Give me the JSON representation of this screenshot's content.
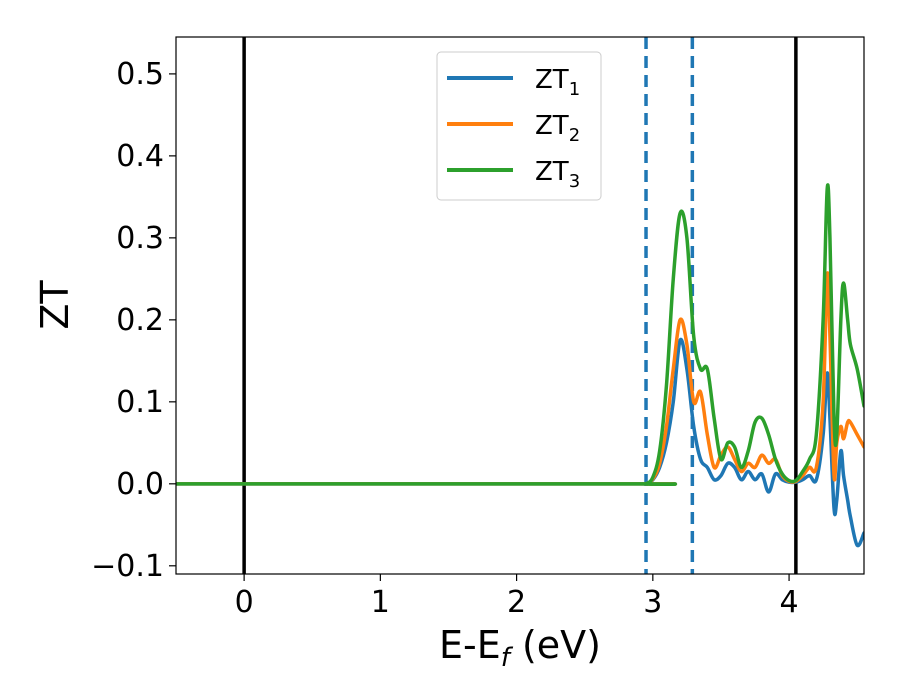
{
  "chart_data": {
    "type": "line",
    "xlabel": "E-E",
    "xlabel_sub": "f",
    "xlabel_unit": " (eV)",
    "ylabel": "ZT",
    "xlim": [
      -0.5,
      4.55
    ],
    "ylim": [
      -0.11,
      0.545
    ],
    "xticks": [
      0,
      1,
      2,
      3,
      4
    ],
    "xtick_labels": [
      "0",
      "1",
      "2",
      "3",
      "4"
    ],
    "yticks": [
      -0.1,
      0.0,
      0.1,
      0.2,
      0.3,
      0.4,
      0.5
    ],
    "ytick_labels": [
      "−0.1",
      "0.0",
      "0.1",
      "0.2",
      "0.3",
      "0.4",
      "0.5"
    ],
    "grid": false,
    "legend_position": "upper-center",
    "vlines": [
      {
        "x": 0.0,
        "style": "solid",
        "color": "#000000"
      },
      {
        "x": 4.05,
        "style": "solid",
        "color": "#000000"
      },
      {
        "x": 2.95,
        "style": "dashed",
        "color": "#1f77b4"
      },
      {
        "x": 3.29,
        "style": "dashed",
        "color": "#1f77b4"
      }
    ],
    "series": [
      {
        "name": "ZT",
        "name_sub": "1",
        "color": "#1f77b4",
        "x": [
          -0.5,
          2.9,
          2.95,
          3.0,
          3.05,
          3.1,
          3.15,
          3.2,
          3.25,
          3.3,
          3.35,
          3.4,
          3.45,
          3.5,
          3.55,
          3.6,
          3.65,
          3.7,
          3.75,
          3.8,
          3.85,
          3.9,
          3.95,
          4.0,
          4.05,
          4.1,
          4.15,
          4.2,
          4.25,
          4.28,
          4.3,
          4.33,
          4.35,
          4.38,
          4.4,
          4.43,
          4.45,
          4.5,
          4.55
        ],
        "y": [
          0.0,
          0.0,
          0.0,
          0.005,
          0.02,
          0.05,
          0.1,
          0.175,
          0.14,
          0.07,
          0.03,
          0.02,
          0.005,
          0.01,
          0.025,
          0.02,
          0.005,
          0.015,
          0.005,
          0.012,
          -0.01,
          0.012,
          0.005,
          0.002,
          0.002,
          0.005,
          0.01,
          0.005,
          0.06,
          0.135,
          0.08,
          -0.03,
          -0.02,
          0.04,
          0.01,
          -0.02,
          -0.04,
          -0.075,
          -0.06
        ]
      },
      {
        "name": "ZT",
        "name_sub": "2",
        "color": "#ff7f0e",
        "x": [
          -0.5,
          2.9,
          2.95,
          3.0,
          3.05,
          3.1,
          3.15,
          3.2,
          3.25,
          3.3,
          3.35,
          3.4,
          3.45,
          3.5,
          3.55,
          3.6,
          3.65,
          3.7,
          3.75,
          3.8,
          3.85,
          3.9,
          3.95,
          4.0,
          4.05,
          4.1,
          4.15,
          4.2,
          4.25,
          4.28,
          4.3,
          4.33,
          4.35,
          4.38,
          4.4,
          4.43,
          4.45,
          4.5,
          4.55
        ],
        "y": [
          0.0,
          0.0,
          0.0,
          0.006,
          0.025,
          0.07,
          0.14,
          0.2,
          0.17,
          0.1,
          0.112,
          0.06,
          0.02,
          0.035,
          0.045,
          0.03,
          0.015,
          0.025,
          0.02,
          0.035,
          0.025,
          0.03,
          0.01,
          0.003,
          0.003,
          0.01,
          0.02,
          0.02,
          0.1,
          0.255,
          0.18,
          0.01,
          0.05,
          0.07,
          0.055,
          0.075,
          0.075,
          0.06,
          0.045
        ]
      },
      {
        "name": "ZT",
        "name_sub": "3",
        "color": "#2ca02c",
        "x": [
          -0.5,
          2.9,
          2.95,
          3.0,
          3.05,
          3.1,
          3.15,
          3.2,
          3.25,
          3.3,
          3.35,
          3.4,
          3.45,
          3.5,
          3.55,
          3.6,
          3.65,
          3.7,
          3.75,
          3.8,
          3.85,
          3.9,
          3.95,
          4.0,
          4.05,
          4.1,
          4.15,
          4.2,
          4.25,
          4.28,
          4.3,
          4.33,
          4.35,
          4.38,
          4.4,
          4.43,
          4.45,
          4.5,
          4.55
        ],
        "y": [
          0.0,
          0.0,
          0.0,
          0.008,
          0.04,
          0.12,
          0.25,
          0.33,
          0.3,
          0.18,
          0.14,
          0.14,
          0.08,
          0.03,
          0.05,
          0.045,
          0.02,
          0.04,
          0.075,
          0.08,
          0.06,
          0.03,
          0.012,
          0.004,
          0.004,
          0.015,
          0.03,
          0.06,
          0.2,
          0.36,
          0.3,
          0.08,
          0.06,
          0.2,
          0.245,
          0.2,
          0.17,
          0.14,
          0.095
        ]
      }
    ]
  }
}
